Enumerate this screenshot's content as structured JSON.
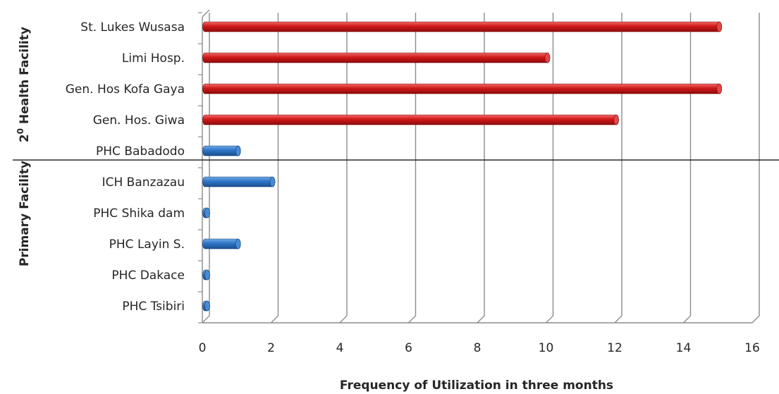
{
  "chart_data": {
    "type": "bar",
    "orientation": "horizontal",
    "categories": [
      "PHC Tsibiri",
      "PHC Dakace",
      "PHC Layin S.",
      "PHC Shika dam",
      "ICH Banzazau",
      "PHC Babadodo",
      "Gen. Hos. Giwa",
      "Gen. Hos Kofa Gaya",
      "Limi Hosp.",
      "St. Lukes Wusasa"
    ],
    "values": [
      0,
      0,
      1,
      0,
      2,
      1,
      12,
      15,
      10,
      15
    ],
    "groups": [
      "primary",
      "primary",
      "primary",
      "primary",
      "primary",
      "primary",
      "secondary",
      "secondary",
      "secondary",
      "secondary"
    ],
    "xlabel": "Frequency of Utilization in three months",
    "ylabel_groups": {
      "secondary": {
        "base": "2",
        "sup": "0",
        "rest": " Health Facility"
      },
      "primary": "Primary Facility"
    },
    "xlim": [
      0,
      16
    ],
    "xticks": [
      0,
      2,
      4,
      6,
      8,
      10,
      12,
      14,
      16
    ],
    "grid": true,
    "colors": {
      "primary": "#2e75c7",
      "secondary": "#d01818"
    }
  }
}
